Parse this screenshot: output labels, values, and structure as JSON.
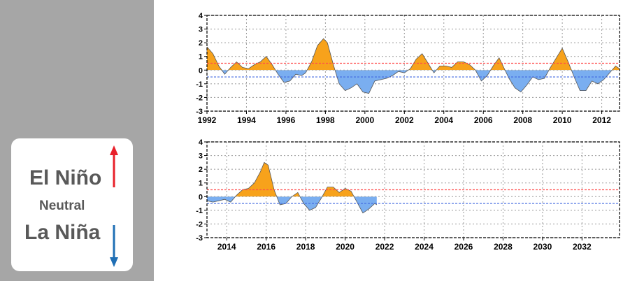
{
  "legend": {
    "el_nino": "El Niño",
    "neutral": "Neutral",
    "la_nina": "La Niña",
    "el_nino_arrow_color": "#e8202a",
    "la_nina_arrow_color": "#1f6fb5"
  },
  "chart_data": [
    {
      "type": "area",
      "x_start": 1992,
      "x_end": 2012.9,
      "x_ticks": [
        1992,
        1994,
        1996,
        1998,
        2000,
        2002,
        2004,
        2006,
        2008,
        2010,
        2012
      ],
      "y_ticks": [
        -3,
        -2,
        -1,
        0,
        1,
        2,
        3,
        4
      ],
      "ylim": [
        -3,
        4
      ],
      "thresholds": {
        "el_nino": 0.5,
        "la_nina": -0.5
      },
      "grid": true,
      "colors": {
        "positive": "#f7a21b",
        "negative": "#7aaef0",
        "el_nino_line": "#ff4d4d",
        "la_nina_line": "#4169e1"
      },
      "series": [
        {
          "x": [
            1992.0,
            1992.3,
            1992.6,
            1992.9,
            1993.2,
            1993.5,
            1993.8,
            1994.1,
            1994.4,
            1994.7,
            1995.0,
            1995.3,
            1995.6,
            1995.9,
            1996.2,
            1996.5,
            1996.8,
            1997.0,
            1997.3,
            1997.6,
            1997.9,
            1998.1,
            1998.4,
            1998.7,
            1999.0,
            1999.3,
            1999.6,
            1999.9,
            2000.2,
            2000.5,
            2000.8,
            2001.1,
            2001.4,
            2001.7,
            2002.0,
            2002.3,
            2002.6,
            2002.9,
            2003.2,
            2003.5,
            2003.8,
            2004.1,
            2004.4,
            2004.7,
            2005.0,
            2005.3,
            2005.6,
            2005.9,
            2006.2,
            2006.5,
            2006.8,
            2007.0,
            2007.3,
            2007.6,
            2007.9,
            2008.2,
            2008.5,
            2008.8,
            2009.1,
            2009.4,
            2009.7,
            2010.0,
            2010.3,
            2010.6,
            2010.9,
            2011.2,
            2011.5,
            2011.8,
            2012.1,
            2012.4,
            2012.7,
            2012.9
          ],
          "values": [
            1.7,
            1.2,
            0.3,
            -0.3,
            0.2,
            0.6,
            0.2,
            0.1,
            0.4,
            0.6,
            1.0,
            0.4,
            -0.3,
            -0.9,
            -0.8,
            -0.3,
            -0.4,
            -0.2,
            0.6,
            1.8,
            2.3,
            2.0,
            0.4,
            -1.0,
            -1.5,
            -1.3,
            -1.0,
            -1.6,
            -1.7,
            -0.8,
            -0.7,
            -0.6,
            -0.4,
            -0.1,
            -0.2,
            0.1,
            0.8,
            1.2,
            0.5,
            -0.2,
            0.3,
            0.3,
            0.2,
            0.6,
            0.6,
            0.4,
            0.0,
            -0.8,
            -0.4,
            0.3,
            0.9,
            0.3,
            -0.6,
            -1.3,
            -1.6,
            -1.1,
            -0.5,
            -0.7,
            -0.6,
            0.2,
            0.9,
            1.6,
            0.6,
            -0.5,
            -1.5,
            -1.5,
            -0.8,
            -1.0,
            -0.7,
            -0.2,
            0.3,
            0.1
          ]
        }
      ]
    },
    {
      "type": "area",
      "x_start": 2013,
      "x_end": 2033.9,
      "x_ticks": [
        2014,
        2016,
        2018,
        2020,
        2022,
        2024,
        2026,
        2028,
        2030,
        2032
      ],
      "y_ticks": [
        -3,
        -2,
        -1,
        0,
        1,
        2,
        3,
        4
      ],
      "ylim": [
        -3,
        4
      ],
      "thresholds": {
        "el_nino": 0.5,
        "la_nina": -0.5
      },
      "grid": true,
      "colors": {
        "positive": "#f7a21b",
        "negative": "#7aaef0",
        "el_nino_line": "#ff4d4d",
        "la_nina_line": "#4169e1"
      },
      "series": [
        {
          "x": [
            2013.0,
            2013.3,
            2013.6,
            2013.9,
            2014.2,
            2014.5,
            2014.8,
            2015.1,
            2015.4,
            2015.7,
            2015.9,
            2016.1,
            2016.4,
            2016.7,
            2017.0,
            2017.3,
            2017.6,
            2017.9,
            2018.2,
            2018.5,
            2018.8,
            2019.1,
            2019.4,
            2019.7,
            2020.0,
            2020.3,
            2020.6,
            2020.9,
            2021.2,
            2021.5,
            2021.6
          ],
          "values": [
            -0.3,
            -0.4,
            -0.3,
            -0.2,
            -0.4,
            0.1,
            0.5,
            0.6,
            1.0,
            1.8,
            2.5,
            2.3,
            0.5,
            -0.6,
            -0.5,
            0.0,
            0.3,
            -0.5,
            -1.0,
            -0.8,
            -0.1,
            0.7,
            0.7,
            0.3,
            0.6,
            0.4,
            -0.4,
            -1.2,
            -0.9,
            -0.5,
            -0.6
          ]
        }
      ]
    }
  ]
}
